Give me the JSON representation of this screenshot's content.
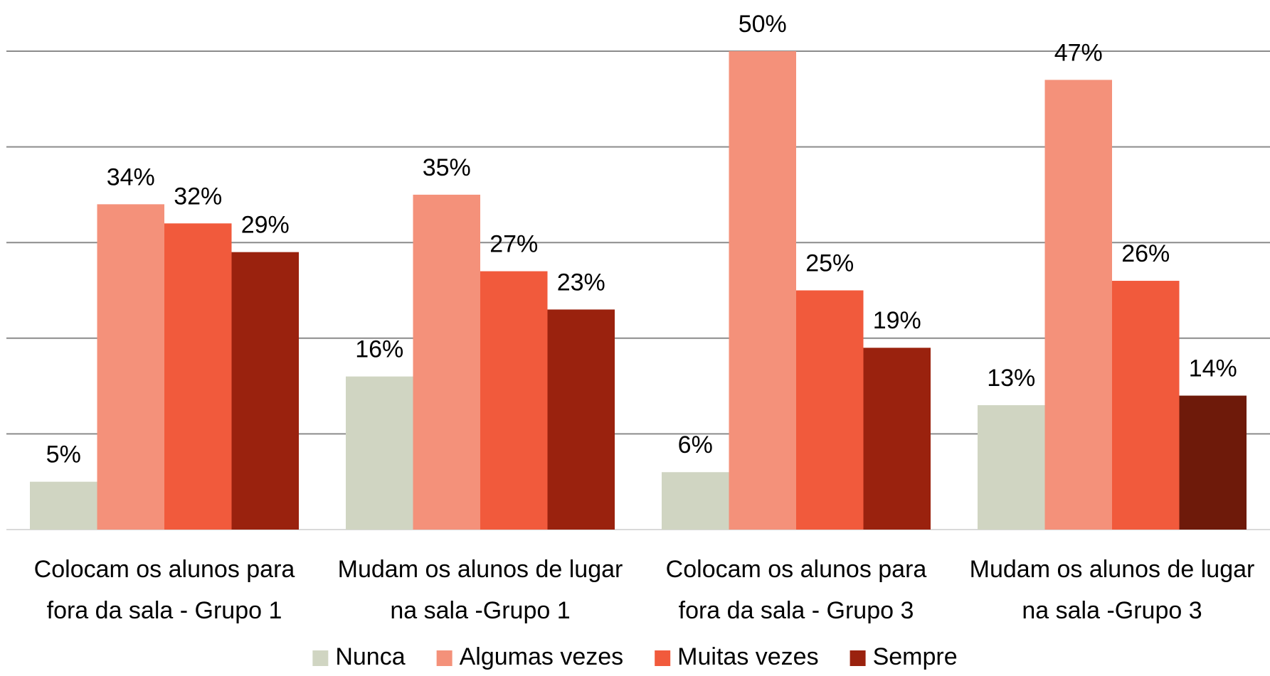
{
  "chart_data": {
    "type": "bar",
    "categories": [
      "Colocam os alunos para fora da sala - Grupo 1",
      "Mudam os alunos de lugar na sala -Grupo 1",
      "Colocam os alunos para fora da sala - Grupo 3",
      "Mudam os alunos de lugar na sala -Grupo 3"
    ],
    "series": [
      {
        "name": "Nunca",
        "color": "#d0d5c2",
        "values": [
          5,
          16,
          6,
          13
        ],
        "value_labels": [
          "5%",
          "16%",
          "6%",
          "13%"
        ]
      },
      {
        "name": "Algumas vezes",
        "color": "#f4917a",
        "values": [
          34,
          35,
          50,
          47
        ],
        "value_labels": [
          "34%",
          "35%",
          "50%",
          "47%"
        ]
      },
      {
        "name": "Muitas vezes",
        "color": "#f15a3c",
        "values": [
          32,
          27,
          25,
          26
        ],
        "value_labels": [
          "32%",
          "27%",
          "25%",
          "26%"
        ]
      },
      {
        "name": "Sempre",
        "color": "#9a220e",
        "colors": [
          "#9a220e",
          "#9a220e",
          "#9a220e",
          "#6e1a0a"
        ],
        "values": [
          29,
          23,
          19,
          14
        ],
        "value_labels": [
          "29%",
          "23%",
          "19%",
          "14%"
        ]
      }
    ],
    "ylim": [
      0,
      50
    ],
    "yticks": [
      0,
      10,
      20,
      30,
      40,
      50
    ],
    "grid": true,
    "legend": "bottom"
  }
}
